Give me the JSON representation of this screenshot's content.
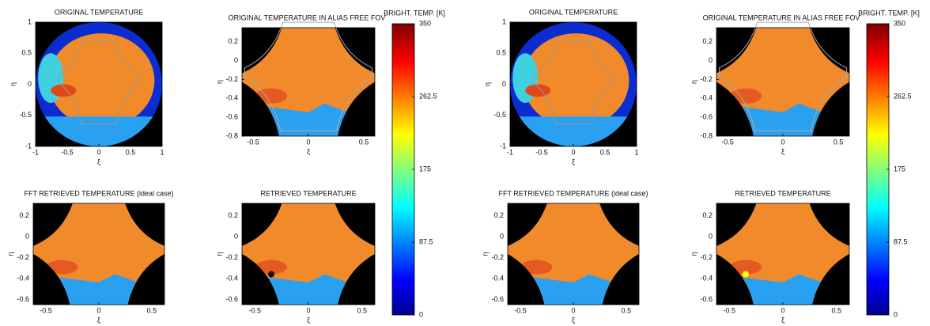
{
  "figures": [
    {
      "panels": [
        {
          "title": "ORIGINAL TEMPERATURE",
          "xlabel": "ξ",
          "ylabel": "η",
          "xlim": [
            -1,
            1
          ],
          "ylim": [
            -1,
            1
          ],
          "xticks": [
            -1,
            -0.5,
            0,
            0.5,
            1
          ],
          "yticks": [
            -1,
            -0.5,
            0,
            0.5,
            1
          ]
        },
        {
          "title": "ORIGINAL TEMPERATURE IN ALIAS FREE FOV",
          "xlabel": "ξ",
          "ylabel": "η",
          "xlim": [
            -0.6,
            0.6
          ],
          "ylim": [
            -0.8,
            0.35
          ],
          "xticks": [
            -0.5,
            0,
            0.5
          ],
          "yticks": [
            0.2,
            0,
            -0.2,
            -0.4,
            -0.6,
            -0.8
          ]
        },
        {
          "title": "FFT RETRIEVED TEMPERATURE (ideal case)",
          "xlabel": "ξ",
          "ylabel": "η",
          "xlim": [
            -0.62,
            0.62
          ],
          "ylim": [
            -0.65,
            0.32
          ],
          "xticks": [
            -0.5,
            0,
            0.5
          ],
          "yticks": [
            0.2,
            0,
            -0.2,
            -0.4,
            -0.6
          ]
        },
        {
          "title": "RETRIEVED TEMPERATURE",
          "xlabel": "ξ",
          "ylabel": "η",
          "xlim": [
            -0.62,
            0.62
          ],
          "ylim": [
            -0.65,
            0.32
          ],
          "xticks": [
            -0.5,
            0,
            0.5
          ],
          "yticks": [
            0.2,
            0,
            -0.2,
            -0.4,
            -0.6
          ]
        }
      ],
      "colorbar": {
        "label": "BRIGHT. TEMP. [K]",
        "lim": [
          0,
          350
        ],
        "ticks": [
          0,
          87.5,
          175,
          262.5,
          350
        ]
      }
    },
    {
      "panels": [
        {
          "title": "ORIGINAL TEMPERATURE",
          "xlabel": "ξ",
          "ylabel": "η",
          "xlim": [
            -1,
            1
          ],
          "ylim": [
            -1,
            1
          ],
          "xticks": [
            -1,
            -0.5,
            0,
            0.5,
            1
          ],
          "yticks": [
            -1,
            -0.5,
            0,
            0.5,
            1
          ]
        },
        {
          "title": "ORIGINAL TEMPERATURE IN ALIAS FREE FOV",
          "xlabel": "ξ",
          "ylabel": "η",
          "xlim": [
            -0.6,
            0.6
          ],
          "ylim": [
            -0.8,
            0.35
          ],
          "xticks": [
            -0.5,
            0,
            0.5
          ],
          "yticks": [
            0.2,
            0,
            -0.2,
            -0.4,
            -0.6,
            -0.8
          ]
        },
        {
          "title": "FFT RETRIEVED TEMPERATURE (ideal case)",
          "xlabel": "ξ",
          "ylabel": "η",
          "xlim": [
            -0.62,
            0.62
          ],
          "ylim": [
            -0.65,
            0.32
          ],
          "xticks": [
            -0.5,
            0,
            0.5
          ],
          "yticks": [
            0.2,
            0,
            -0.2,
            -0.4,
            -0.6
          ]
        },
        {
          "title": "RETRIEVED TEMPERATURE",
          "xlabel": "ξ",
          "ylabel": "η",
          "xlim": [
            -0.62,
            0.62
          ],
          "ylim": [
            -0.65,
            0.32
          ],
          "xticks": [
            -0.5,
            0,
            0.5
          ],
          "yticks": [
            0.2,
            0,
            -0.2,
            -0.4,
            -0.6
          ]
        }
      ],
      "colorbar": {
        "label": "BRIGHT. TEMP. [K]",
        "lim": [
          0,
          350
        ],
        "ticks": [
          0,
          87.5,
          175,
          262.5,
          350
        ]
      }
    }
  ]
}
